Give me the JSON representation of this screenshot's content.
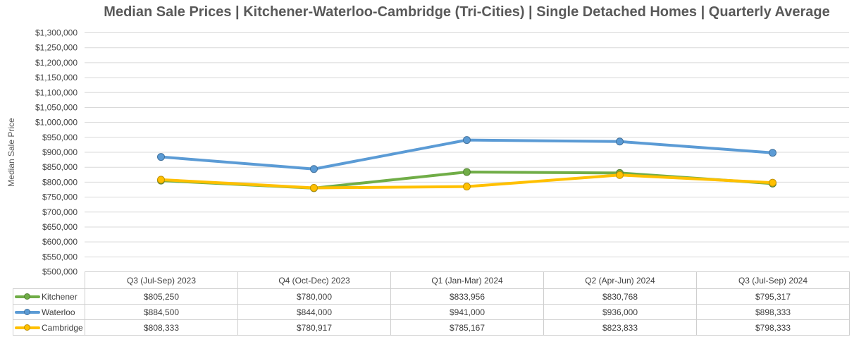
{
  "title": "Median Sale Prices | Kitchener-Waterloo-Cambridge (Tri-Cities) | Single Detached Homes | Quarterly Average",
  "chart_data": {
    "type": "line",
    "title": "Median Sale Prices | Kitchener-Waterloo-Cambridge (Tri-Cities) | Single Detached Homes | Quarterly Average",
    "xlabel": "",
    "ylabel": "Median Sale Price",
    "ylim": [
      500000,
      1300000
    ],
    "ytick_step": 50000,
    "ytick_prefix": "$",
    "grid": true,
    "gridline_color": "#d9d9d9",
    "legend_position": "table-left",
    "categories": [
      "Q3 (Jul-Sep) 2023",
      "Q4 (Oct-Dec) 2023",
      "Q1 (Jan-Mar) 2024",
      "Q2 (Apr-Jun) 2024",
      "Q3 (Jul-Sep) 2024"
    ],
    "series": [
      {
        "name": "Kitchener",
        "color": "#70AD47",
        "color_dark": "#548235",
        "values": [
          805250,
          780000,
          833956,
          830768,
          795317
        ]
      },
      {
        "name": "Waterloo",
        "color": "#5B9BD5",
        "color_dark": "#41719C",
        "values": [
          884500,
          844000,
          941000,
          936000,
          898333
        ]
      },
      {
        "name": "Cambridge",
        "color": "#FFC000",
        "color_dark": "#BF9000",
        "values": [
          808333,
          780917,
          785167,
          823833,
          798333
        ]
      }
    ]
  },
  "table": {
    "headers": [
      "Q3 (Jul-Sep) 2023",
      "Q4 (Oct-Dec) 2023",
      "Q1 (Jan-Mar) 2024",
      "Q2 (Apr-Jun) 2024",
      "Q3 (Jul-Sep) 2024"
    ],
    "rows": [
      {
        "label": "Kitchener",
        "values": [
          "$805,250",
          "$780,000",
          "$833,956",
          "$830,768",
          "$795,317"
        ]
      },
      {
        "label": "Waterloo",
        "values": [
          "$884,500",
          "$844,000",
          "$941,000",
          "$936,000",
          "$898,333"
        ]
      },
      {
        "label": "Cambridge",
        "values": [
          "$808,333",
          "$780,917",
          "$785,167",
          "$823,833",
          "$798,333"
        ]
      }
    ]
  }
}
